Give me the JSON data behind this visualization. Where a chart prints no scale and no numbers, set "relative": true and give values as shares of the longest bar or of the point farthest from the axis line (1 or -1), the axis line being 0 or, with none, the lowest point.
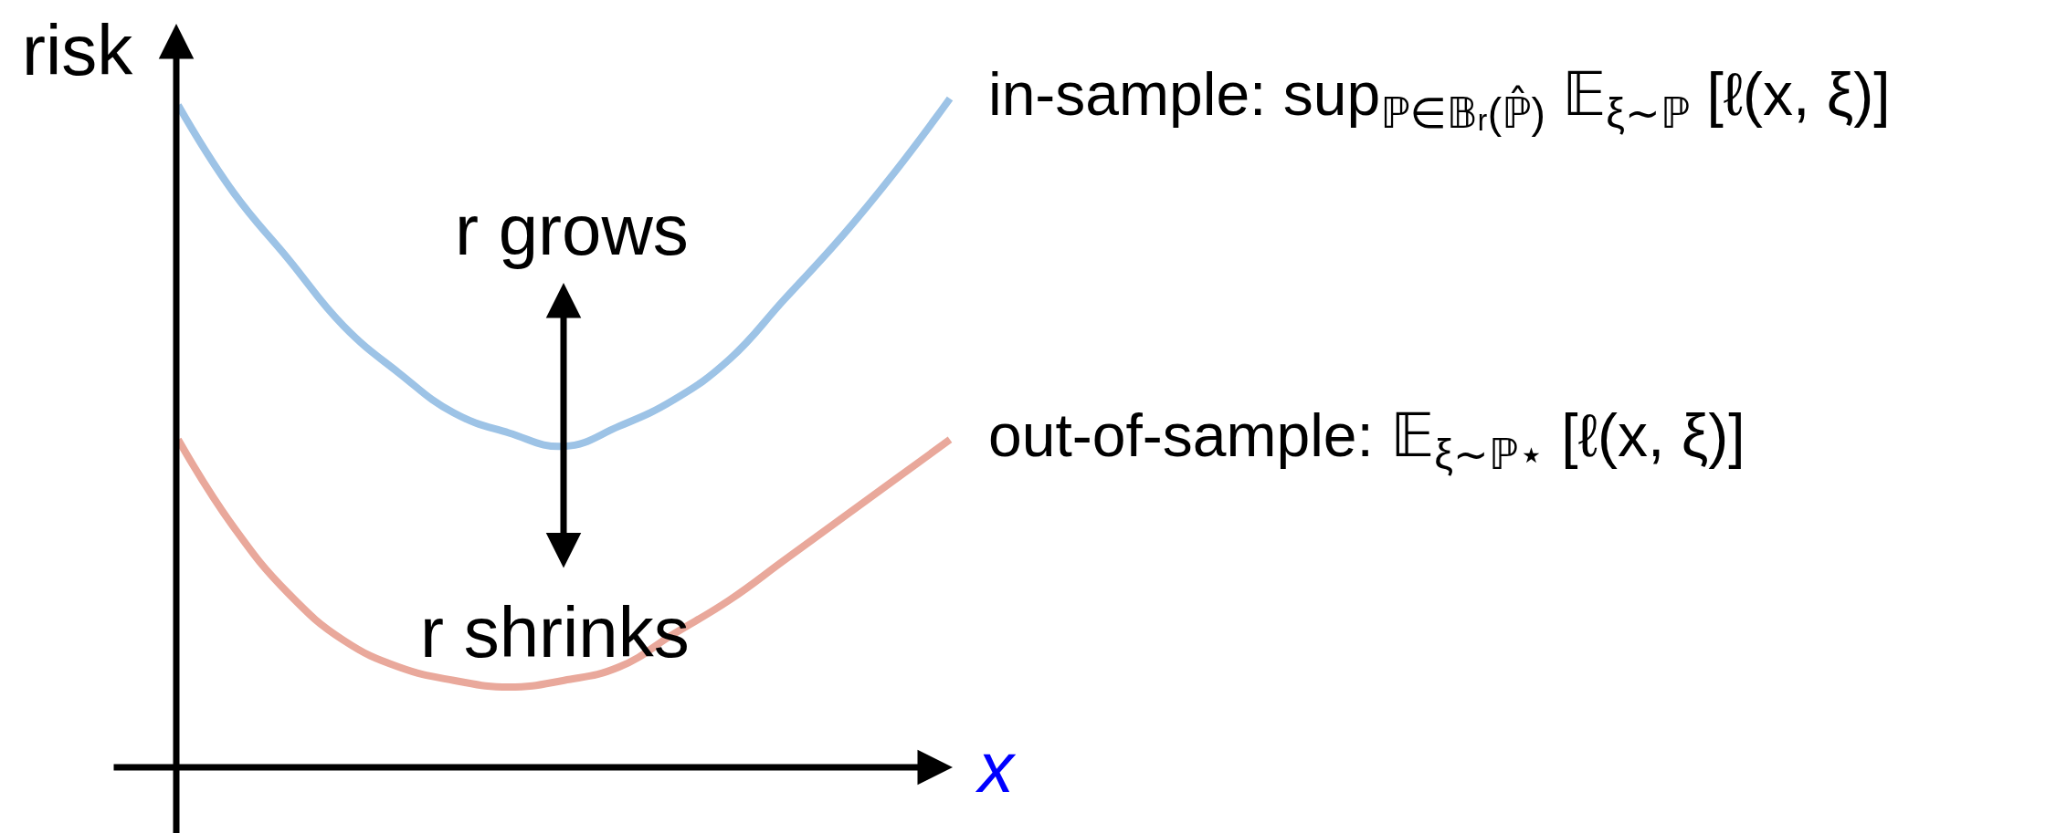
{
  "chart_data": {
    "type": "line",
    "relative": true,
    "xlabel": "x",
    "ylabel": "risk",
    "line_style": "solid",
    "categories": [
      null,
      null,
      null,
      null,
      null,
      null,
      null,
      null,
      null,
      null,
      null,
      null,
      null,
      null,
      null
    ],
    "series": [
      {
        "name": "in-sample: sup$_{ℙ∈𝔹ᵣ(ℙ̂)}$ 𝔼$_{ξ∼ℙ}$ [ℓ(x, ξ)]",
        "color": "#9dc3e6",
        "values": [
          0.99,
          0.86,
          0.76,
          0.66,
          0.59,
          0.53,
          0.5,
          0.48,
          0.51,
          0.55,
          0.61,
          0.7,
          0.79,
          0.89,
          1
        ]
      },
      {
        "name": "out-of-sample: 𝔼$_{ξ∼ℙ⋆}$ [ℓ(x, ξ)]",
        "color": "#e9a89b",
        "values": [
          0.49,
          0.36,
          0.26,
          0.19,
          0.15,
          0.13,
          0.12,
          0.13,
          0.15,
          0.2,
          0.25,
          0.31,
          0.37,
          0.43,
          0.49
        ]
      }
    ],
    "annotations": [
      "r grows",
      "r shrinks"
    ]
  }
}
